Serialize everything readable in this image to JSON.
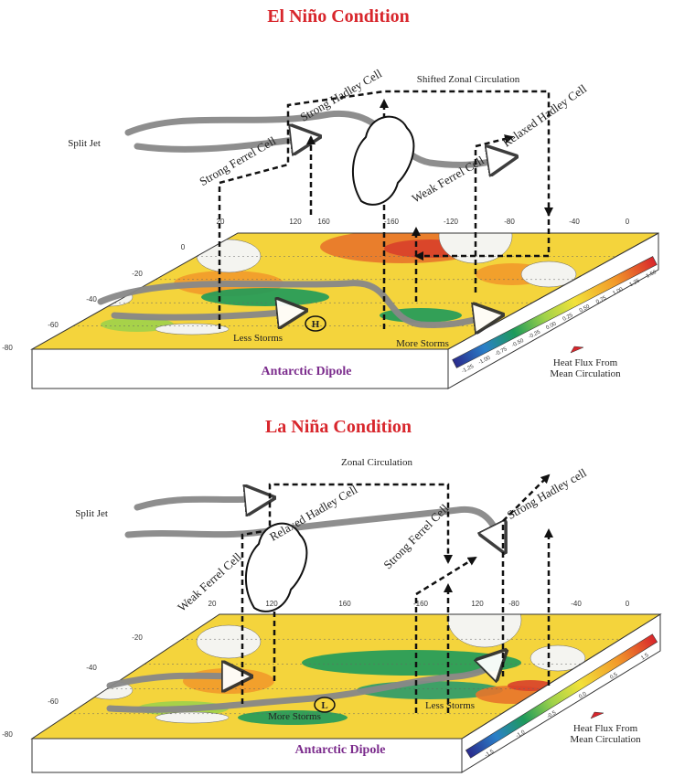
{
  "panels": [
    {
      "title": "El Niño Condition",
      "labels": [
        "Split Jet",
        "Strong Hadley Cell",
        "Shifted Zonal Circulation",
        "Relaxed Hadley Cell",
        "Strong Ferrel Cell",
        "Weak Ferrel Cell",
        "Less Storms",
        "More Storms",
        "Antarctic Dipole"
      ],
      "heat_flux": [
        "Heat Flux From",
        "Mean Circulation"
      ],
      "longitudes": [
        "20",
        "120",
        "160",
        "-160",
        "-120",
        "-80",
        "-40",
        "0"
      ],
      "latitudes": [
        "0",
        "-20",
        "-40",
        "-60",
        "-80"
      ],
      "colorbar": [
        "-1.25",
        "-1.00",
        "-0.75",
        "-0.50",
        "-0.25",
        "0.00",
        "0.25",
        "0.50",
        "0.75",
        "1.00",
        "1.25",
        "1.50"
      ],
      "pressure_center": "H"
    },
    {
      "title": "La Niña Condition",
      "labels": [
        "Zonal Circulation",
        "Split Jet",
        "Relaxed Hadley Cell",
        "Strong Hadley cell",
        "Weak Ferrel Cell",
        "Strong Ferrel Cell",
        "More Storms",
        "Less Storms",
        "Antarctic Dipole"
      ],
      "heat_flux": [
        "Heat Flux From",
        "Mean Circulation"
      ],
      "longitudes": [
        "20",
        "120",
        "160",
        "-160",
        "120",
        "-80",
        "-40",
        "0"
      ],
      "latitudes": [
        "-20",
        "-40",
        "-60",
        "-80"
      ],
      "colorbar": [
        "-1.5",
        "-1.0",
        "-0.5",
        "0.0",
        "0.5",
        "1.5"
      ],
      "pressure_center": "L"
    }
  ]
}
